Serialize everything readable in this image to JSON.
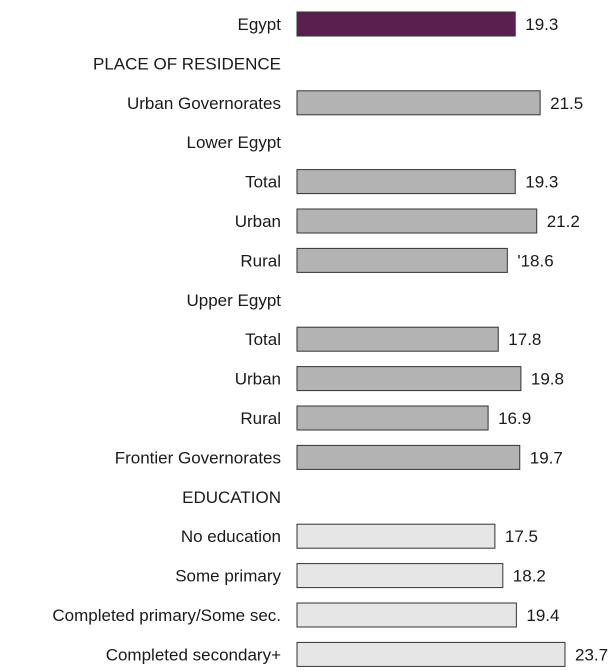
{
  "chart_data": {
    "type": "bar",
    "orientation": "horizontal",
    "title": "",
    "xlabel": "",
    "ylabel": "",
    "xlim": [
      0,
      23.7
    ],
    "grid": false,
    "legend": "none",
    "colors": {
      "total": "#5a1f4e",
      "residence": "#b3b3b3",
      "education": "#e6e6e6",
      "border": "#333333"
    },
    "rows": [
      {
        "label": "Egypt",
        "value": 19.3,
        "value_label": "19.3",
        "group": "total"
      },
      {
        "label": "PLACE OF RESIDENCE",
        "header": true
      },
      {
        "label": "Urban Governorates",
        "value": 21.5,
        "value_label": "21.5",
        "group": "residence"
      },
      {
        "label": "Lower Egypt",
        "header": true
      },
      {
        "label": "Total",
        "value": 19.3,
        "value_label": "19.3",
        "group": "residence"
      },
      {
        "label": "Urban",
        "value": 21.2,
        "value_label": "21.2",
        "group": "residence"
      },
      {
        "label": "Rural",
        "value": 18.6,
        "value_label": "'18.6",
        "group": "residence"
      },
      {
        "label": "Upper Egypt",
        "header": true
      },
      {
        "label": "Total",
        "value": 17.8,
        "value_label": "17.8",
        "group": "residence"
      },
      {
        "label": "Urban",
        "value": 19.8,
        "value_label": "19.8",
        "group": "residence"
      },
      {
        "label": "Rural",
        "value": 16.9,
        "value_label": "16.9",
        "group": "residence"
      },
      {
        "label": "Frontier Governorates",
        "value": 19.7,
        "value_label": "19.7",
        "group": "residence"
      },
      {
        "label": "EDUCATION",
        "header": true
      },
      {
        "label": "No education",
        "value": 17.5,
        "value_label": "17.5",
        "group": "education"
      },
      {
        "label": "Some primary",
        "value": 18.2,
        "value_label": "18.2",
        "group": "education"
      },
      {
        "label": "Completed primary/Some sec.",
        "value": 19.4,
        "value_label": "19.4",
        "group": "education"
      },
      {
        "label": "Completed secondary+",
        "value": 23.7,
        "value_label": "23.7",
        "group": "education"
      }
    ]
  }
}
